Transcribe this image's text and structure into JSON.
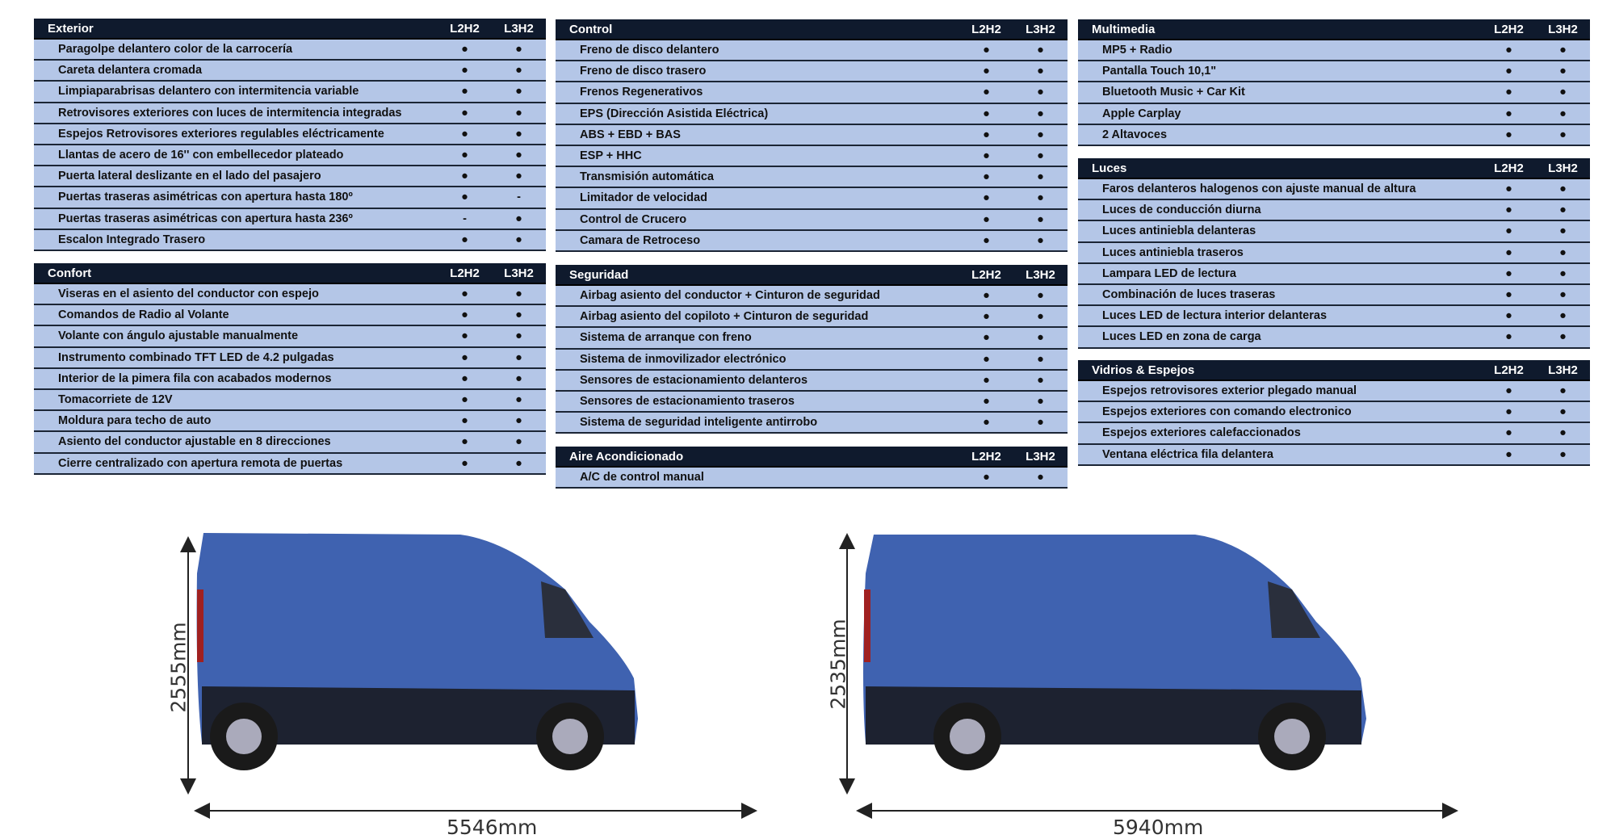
{
  "columns": [
    "L2H2",
    "L3H2"
  ],
  "sections": [
    {
      "title": "Exterior",
      "rows": [
        [
          "Paragolpe delantero color de la carrocería",
          "●",
          "●"
        ],
        [
          "Careta delantera cromada",
          "●",
          "●"
        ],
        [
          "Limpiaparabrisas delantero con intermitencia variable",
          "●",
          "●"
        ],
        [
          "Retrovisores exteriores con luces de intermitencia integradas",
          "●",
          "●"
        ],
        [
          "Espejos Retrovisores exteriores regulables eléctricamente",
          "●",
          "●"
        ],
        [
          "Llantas de acero de 16'' con embellecedor plateado",
          "●",
          "●"
        ],
        [
          "Puerta lateral deslizante en el lado del pasajero",
          "●",
          "●"
        ],
        [
          "Puertas traseras asimétricas con apertura hasta 180º",
          "●",
          "-"
        ],
        [
          "Puertas traseras asimétricas con apertura hasta 236º",
          "-",
          "●"
        ],
        [
          "Escalon Integrado Trasero",
          "●",
          "●"
        ]
      ]
    },
    {
      "title": "Confort",
      "rows": [
        [
          "Viseras en el asiento del conductor con espejo",
          "●",
          "●"
        ],
        [
          "Comandos de Radio al Volante",
          "●",
          "●"
        ],
        [
          "Volante con ángulo ajustable manualmente",
          "●",
          "●"
        ],
        [
          "Instrumento combinado TFT LED de 4.2 pulgadas",
          "●",
          "●"
        ],
        [
          "Interior de la pimera fila con acabados modernos",
          "●",
          "●"
        ],
        [
          "Tomacorriete de 12V",
          "●",
          "●"
        ],
        [
          "Moldura para techo de auto",
          "●",
          "●"
        ],
        [
          "Asiento del conductor ajustable en 8 direcciones",
          "●",
          "●"
        ],
        [
          "Cierre centralizado con apertura remota de puertas",
          "●",
          "●"
        ]
      ]
    },
    {
      "title": "Control",
      "rows": [
        [
          "Freno de disco delantero",
          "●",
          "●"
        ],
        [
          "Freno de disco trasero",
          "●",
          "●"
        ],
        [
          "Frenos Regenerativos",
          "●",
          "●"
        ],
        [
          "EPS (Dirección Asistida Eléctrica)",
          "●",
          "●"
        ],
        [
          "ABS + EBD + BAS",
          "●",
          "●"
        ],
        [
          "ESP + HHC",
          "●",
          "●"
        ],
        [
          "Transmisión automática",
          "●",
          "●"
        ],
        [
          "Limitador de velocidad",
          "●",
          "●"
        ],
        [
          "Control de Crucero",
          "●",
          "●"
        ],
        [
          "Camara de Retroceso",
          "●",
          "●"
        ]
      ]
    },
    {
      "title": "Seguridad",
      "rows": [
        [
          "Airbag asiento del conductor + Cinturon de seguridad",
          "●",
          "●"
        ],
        [
          "Airbag asiento del copiloto + Cinturon de seguridad",
          "●",
          "●"
        ],
        [
          "Sistema de arranque con freno",
          "●",
          "●"
        ],
        [
          "Sistema de inmovilizador electrónico",
          "●",
          "●"
        ],
        [
          "Sensores de estacionamiento delanteros",
          "●",
          "●"
        ],
        [
          "Sensores de estacionamiento traseros",
          "●",
          "●"
        ],
        [
          "Sistema de seguridad inteligente antirrobo",
          "●",
          "●"
        ]
      ]
    },
    {
      "title": "Aire Acondicionado",
      "rows": [
        [
          "A/C de control manual",
          "●",
          "●"
        ]
      ]
    },
    {
      "title": "Multimedia",
      "rows": [
        [
          "MP5 + Radio",
          "●",
          "●"
        ],
        [
          "Pantalla Touch 10,1\"",
          "●",
          "●"
        ],
        [
          "Bluetooth Music + Car Kit",
          "●",
          "●"
        ],
        [
          "Apple Carplay",
          "●",
          "●"
        ],
        [
          "2 Altavoces",
          "●",
          "●"
        ]
      ]
    },
    {
      "title": "Luces",
      "rows": [
        [
          "Faros delanteros halogenos con ajuste manual de altura",
          "●",
          "●"
        ],
        [
          "Luces de conducción diurna",
          "●",
          "●"
        ],
        [
          "Luces antiniebla delanteras",
          "●",
          "●"
        ],
        [
          "Luces antiniebla traseros",
          "●",
          "●"
        ],
        [
          "Lampara LED de lectura",
          "●",
          "●"
        ],
        [
          "Combinación de luces traseras",
          "●",
          "●"
        ],
        [
          "Luces LED de lectura interior delanteras",
          "●",
          "●"
        ],
        [
          "Luces LED en zona de carga",
          "●",
          "●"
        ]
      ]
    },
    {
      "title": "Vidrios & Espejos",
      "rows": [
        [
          "Espejos retrovisores exterior plegado manual",
          "●",
          "●"
        ],
        [
          "Espejos exteriores con comando electronico",
          "●",
          "●"
        ],
        [
          "Espejos exteriores calefaccionados",
          "●",
          "●"
        ],
        [
          "Ventana eléctrica fila delantera",
          "●",
          "●"
        ]
      ]
    }
  ],
  "vans": [
    {
      "model": "L2H2",
      "height": "2555mm",
      "length": "5546mm"
    },
    {
      "model": "L3H2",
      "height": "2535mm",
      "length": "5940mm"
    }
  ],
  "colors": {
    "header_bg": "#0f1a2d",
    "row_bg": "#b4c6e7",
    "van_body": "#3f62b0"
  }
}
